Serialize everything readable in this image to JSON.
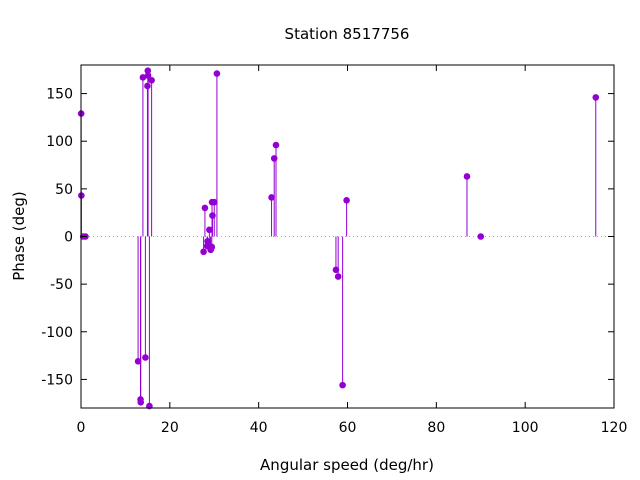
{
  "chart_data": {
    "type": "scatter",
    "style": "impulses-with-points",
    "title": "Station 8517756",
    "xlabel": "Angular speed (deg/hr)",
    "ylabel": "Phase (deg)",
    "xlim": [
      0,
      120
    ],
    "ylim": [
      -180,
      180
    ],
    "xticks": [
      0,
      20,
      40,
      60,
      80,
      100,
      120
    ],
    "yticks": [
      -150,
      -100,
      -50,
      0,
      50,
      100,
      150
    ],
    "zero_line": true,
    "grid": false,
    "legend": "none",
    "color": "#9400d3",
    "points": [
      {
        "x": 0.04,
        "y": 129
      },
      {
        "x": 0.08,
        "y": 43
      },
      {
        "x": 0.5,
        "y": 0
      },
      {
        "x": 1.0,
        "y": 0
      },
      {
        "x": 12.85,
        "y": -131
      },
      {
        "x": 13.4,
        "y": -171
      },
      {
        "x": 13.45,
        "y": -174
      },
      {
        "x": 13.94,
        "y": 167
      },
      {
        "x": 14.5,
        "y": -127
      },
      {
        "x": 14.96,
        "y": 158
      },
      {
        "x": 15.04,
        "y": 174
      },
      {
        "x": 15.1,
        "y": 169
      },
      {
        "x": 15.4,
        "y": -178
      },
      {
        "x": 15.9,
        "y": 164
      },
      {
        "x": 27.6,
        "y": -16
      },
      {
        "x": 27.9,
        "y": 30
      },
      {
        "x": 28.4,
        "y": -10
      },
      {
        "x": 28.5,
        "y": -5
      },
      {
        "x": 28.9,
        "y": 7
      },
      {
        "x": 29.0,
        "y": -11
      },
      {
        "x": 29.2,
        "y": -14
      },
      {
        "x": 29.45,
        "y": -11
      },
      {
        "x": 29.5,
        "y": 36
      },
      {
        "x": 29.6,
        "y": 22
      },
      {
        "x": 30.0,
        "y": 36
      },
      {
        "x": 30.6,
        "y": 171
      },
      {
        "x": 42.9,
        "y": 41
      },
      {
        "x": 43.5,
        "y": 82
      },
      {
        "x": 43.9,
        "y": 96
      },
      {
        "x": 57.4,
        "y": -35
      },
      {
        "x": 57.9,
        "y": -42
      },
      {
        "x": 58.9,
        "y": -156
      },
      {
        "x": 59.8,
        "y": 38
      },
      {
        "x": 86.9,
        "y": 63
      },
      {
        "x": 90.0,
        "y": 0
      },
      {
        "x": 115.9,
        "y": 146
      }
    ]
  }
}
